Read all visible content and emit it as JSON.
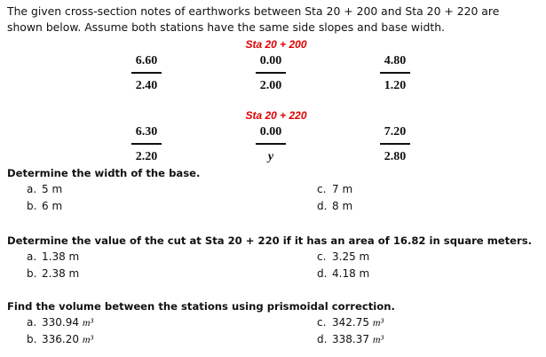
{
  "intro": {
    "line1": "The given cross-section notes of earthworks between Sta 20 + 200 and Sta 20 + 220 are",
    "line2": "shown below. Assume both stations have the same side slopes and base width."
  },
  "stations": [
    {
      "label": "Sta 20 + 200",
      "notes": [
        {
          "top": "6.60",
          "bottom": "2.40"
        },
        {
          "top": "0.00",
          "bottom": "2.00"
        },
        {
          "top": "4.80",
          "bottom": "1.20"
        }
      ]
    },
    {
      "label": "Sta 20 + 220",
      "notes": [
        {
          "top": "6.30",
          "bottom": "2.20"
        },
        {
          "top": "0.00",
          "bottom": "y"
        },
        {
          "top": "7.20",
          "bottom": "2.80"
        }
      ]
    }
  ],
  "questions": [
    {
      "text": "Determine the width of the base.",
      "options": [
        {
          "letter": "a.",
          "value": "5 m"
        },
        {
          "letter": "b.",
          "value": "6 m"
        },
        {
          "letter": "c.",
          "value": "7 m"
        },
        {
          "letter": "d.",
          "value": "8 m"
        }
      ]
    },
    {
      "text": "Determine the value of the cut at Sta 20 + 220 if it has an area of 16.82 in square meters.",
      "options": [
        {
          "letter": "a.",
          "value": "1.38 m"
        },
        {
          "letter": "b.",
          "value": "2.38 m"
        },
        {
          "letter": "c.",
          "value": "3.25 m"
        },
        {
          "letter": "d.",
          "value": "4.18 m"
        }
      ]
    },
    {
      "text": "Find the volume between the stations using prismoidal correction.",
      "options": [
        {
          "letter": "a.",
          "value": "330.94",
          "unit": "m³"
        },
        {
          "letter": "b.",
          "value": "336.20",
          "unit": "m³"
        },
        {
          "letter": "c.",
          "value": "342.75",
          "unit": "m³"
        },
        {
          "letter": "d.",
          "value": "338.37",
          "unit": "m³"
        }
      ]
    }
  ]
}
